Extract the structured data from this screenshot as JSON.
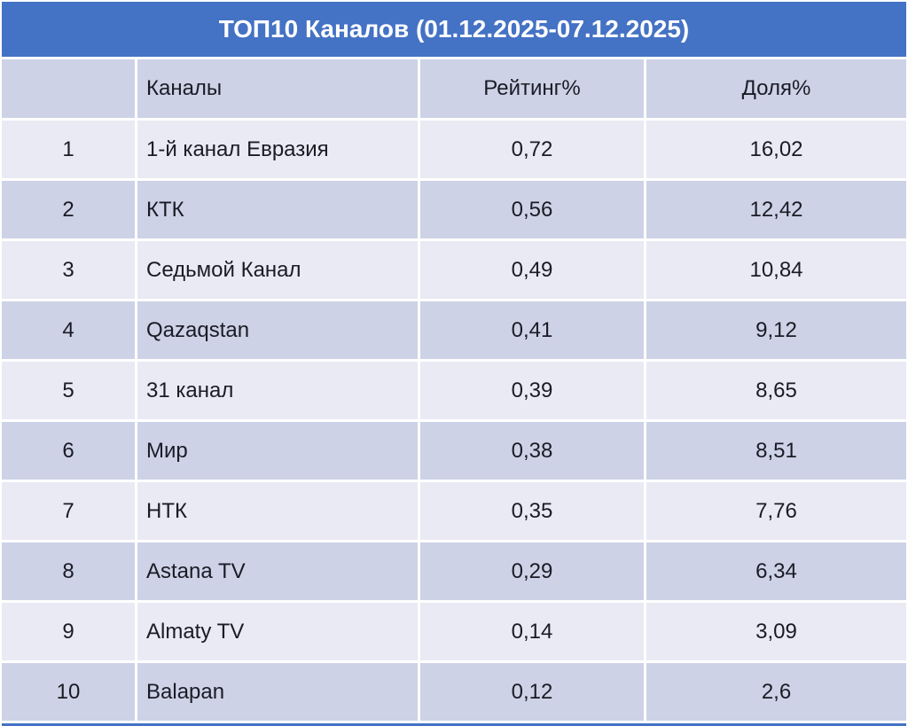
{
  "title": "ТОП10 Каналов (01.12.2025-07.12.2025)",
  "colors": {
    "accent_blue": "#4472C4",
    "band_light": "#E9EAF3",
    "band_dark": "#CDD2E6",
    "text_dark": "#1B1B26",
    "title_text": "#FFFFFF"
  },
  "table": {
    "headers": {
      "rank": "",
      "channel": "Каналы",
      "rating": "Рейтинг%",
      "share": "Доля%"
    },
    "rows": [
      {
        "rank": "1",
        "channel": "1-й канал Евразия",
        "rating": "0,72",
        "share": "16,02"
      },
      {
        "rank": "2",
        "channel": "КТК",
        "rating": "0,56",
        "share": "12,42"
      },
      {
        "rank": "3",
        "channel": "Седьмой Канал",
        "rating": "0,49",
        "share": "10,84"
      },
      {
        "rank": "4",
        "channel": "Qazaqstan",
        "rating": "0,41",
        "share": "9,12"
      },
      {
        "rank": "5",
        "channel": "31 канал",
        "rating": "0,39",
        "share": "8,65"
      },
      {
        "rank": "6",
        "channel": "Мир",
        "rating": "0,38",
        "share": "8,51"
      },
      {
        "rank": "7",
        "channel": "НТК",
        "rating": "0,35",
        "share": "7,76"
      },
      {
        "rank": "8",
        "channel": "Astana TV",
        "rating": "0,29",
        "share": "6,34"
      },
      {
        "rank": "9",
        "channel": "Almaty TV",
        "rating": "0,14",
        "share": "3,09"
      },
      {
        "rank": "10",
        "channel": "Balapan",
        "rating": "0,12",
        "share": "2,6"
      }
    ]
  },
  "chart_data": {
    "type": "table",
    "title": "ТОП10 Каналов (01.12.2025-07.12.2025)",
    "columns": [
      "",
      "Каналы",
      "Рейтинг%",
      "Доля%"
    ],
    "categories": [
      "1-й канал Евразия",
      "КТК",
      "Седьмой Канал",
      "Qazaqstan",
      "31 канал",
      "Мир",
      "НТК",
      "Astana TV",
      "Almaty TV",
      "Balapan"
    ],
    "series": [
      {
        "name": "Рейтинг%",
        "values": [
          0.72,
          0.56,
          0.49,
          0.41,
          0.39,
          0.38,
          0.35,
          0.29,
          0.14,
          0.12
        ]
      },
      {
        "name": "Доля%",
        "values": [
          16.02,
          12.42,
          10.84,
          9.12,
          8.65,
          8.51,
          7.76,
          6.34,
          3.09,
          2.6
        ]
      }
    ],
    "layout": {
      "banded_rows": true,
      "header_fill": "#CDD2E6",
      "title_fill": "#4472C4"
    }
  }
}
